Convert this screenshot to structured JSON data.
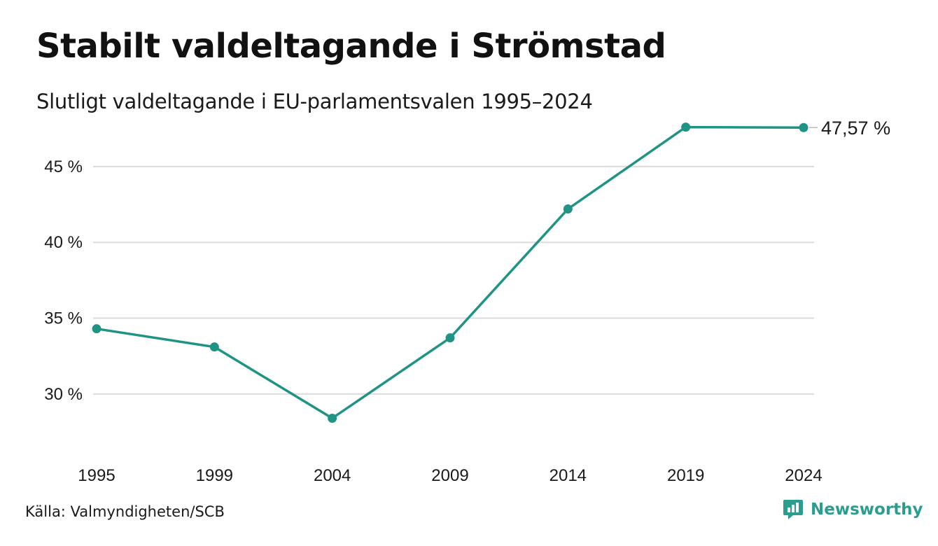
{
  "title": "Stabilt valdeltagande i Strömstad",
  "subtitle": "Slutligt valdeltagande i EU-parlamentsvalen 1995–2024",
  "source": "Källa: Valmyndigheten/SCB",
  "brand": "Newsworthy",
  "colors": {
    "line": "#1f9485",
    "grid": "#dcdcdc",
    "brand": "#2a9d8f"
  },
  "chart_data": {
    "type": "line",
    "x": [
      "1995",
      "1999",
      "2004",
      "2009",
      "2014",
      "2019",
      "2024"
    ],
    "series": [
      {
        "values": [
          34.3,
          33.1,
          28.4,
          33.7,
          42.2,
          47.6,
          47.57
        ]
      }
    ],
    "yticks": [
      30,
      35,
      40,
      45
    ],
    "ytick_labels": [
      "30 %",
      "35 %",
      "40 %",
      "45 %"
    ],
    "ylim": [
      27,
      48.5
    ],
    "end_label": "47,57 %",
    "grid": true,
    "legend": "none"
  }
}
